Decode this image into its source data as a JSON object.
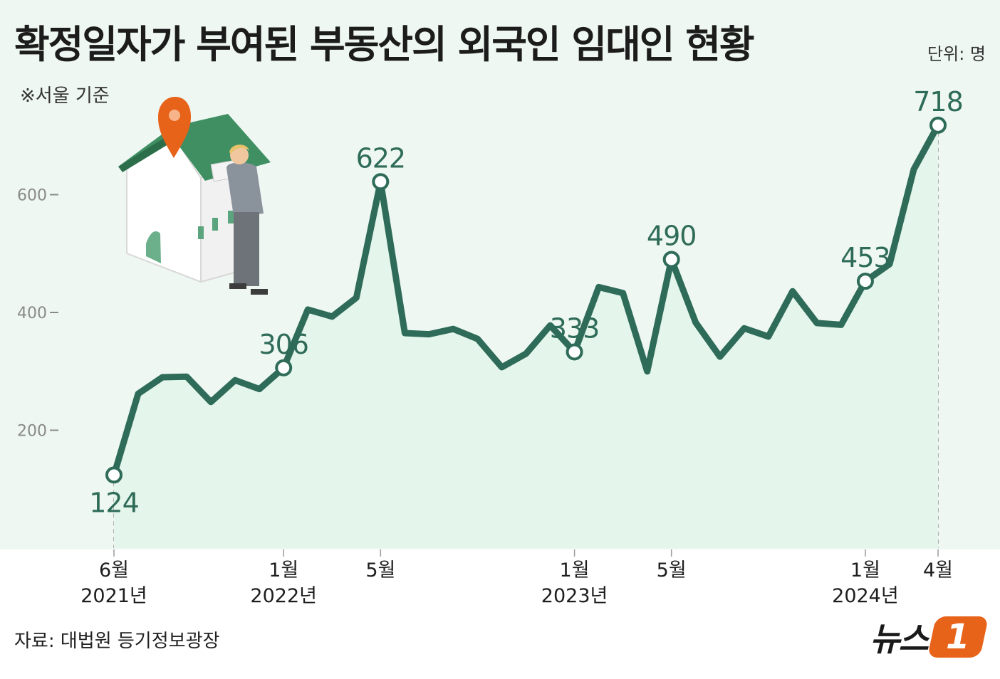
{
  "header": {
    "title": "확정일자가 부여된 부동산의 외국인 임대인 현황",
    "unit": "단위: 명",
    "note": "※서울 기준"
  },
  "footer": {
    "source": "자료: 대법원 등기정보광장",
    "logo_text": "뉴스",
    "logo_badge": "1"
  },
  "colors": {
    "line": "#2e6b58",
    "area": "#e4f5eb",
    "background": "#eef7f2",
    "logo": "#e8631a"
  },
  "chart_data": {
    "type": "line",
    "title": "확정일자가 부여된 부동산의 외국인 임대인 현황",
    "ylabel": "단위: 명",
    "ylim": [
      0,
      800
    ],
    "yticks": [
      200,
      400,
      600
    ],
    "grid": false,
    "x": [
      "2021-06",
      "2021-07",
      "2021-08",
      "2021-09",
      "2021-10",
      "2021-11",
      "2021-12",
      "2022-01",
      "2022-02",
      "2022-03",
      "2022-04",
      "2022-05",
      "2022-06",
      "2022-07",
      "2022-08",
      "2022-09",
      "2022-10",
      "2022-11",
      "2022-12",
      "2023-01",
      "2023-02",
      "2023-03",
      "2023-04",
      "2023-05",
      "2023-06",
      "2023-07",
      "2023-08",
      "2023-09",
      "2023-10",
      "2023-11",
      "2023-12",
      "2024-01",
      "2024-02",
      "2024-03",
      "2024-04"
    ],
    "values": [
      124,
      262,
      290,
      291,
      248,
      285,
      270,
      306,
      405,
      393,
      425,
      622,
      365,
      363,
      372,
      355,
      307,
      330,
      378,
      333,
      443,
      433,
      300,
      490,
      383,
      325,
      373,
      359,
      436,
      382,
      379,
      453,
      482,
      643,
      718
    ],
    "labeled_points": [
      {
        "x": "2021-06",
        "label": "124"
      },
      {
        "x": "2022-01",
        "label": "306"
      },
      {
        "x": "2022-05",
        "label": "622"
      },
      {
        "x": "2023-01",
        "label": "333"
      },
      {
        "x": "2023-05",
        "label": "490"
      },
      {
        "x": "2024-01",
        "label": "453"
      },
      {
        "x": "2024-04",
        "label": "718"
      }
    ],
    "x_tick_labels": [
      {
        "x": "2021-06",
        "month": "6월",
        "year": "2021년"
      },
      {
        "x": "2022-01",
        "month": "1월",
        "year": "2022년"
      },
      {
        "x": "2022-05",
        "month": "5월",
        "year": ""
      },
      {
        "x": "2023-01",
        "month": "1월",
        "year": "2023년"
      },
      {
        "x": "2023-05",
        "month": "5월",
        "year": ""
      },
      {
        "x": "2024-01",
        "month": "1월",
        "year": "2024년"
      },
      {
        "x": "2024-04",
        "month": "4월",
        "year": ""
      }
    ]
  }
}
